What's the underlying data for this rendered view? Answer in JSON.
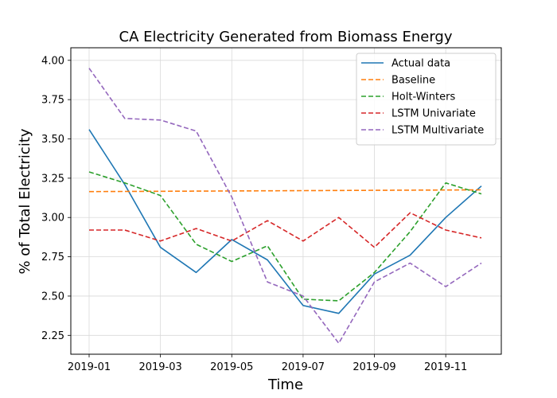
{
  "chart_data": {
    "type": "line",
    "title": "CA Electricity Generated from Biomass Energy",
    "xlabel": "Time",
    "ylabel": "% of Total Electricity",
    "x": [
      "2019-01",
      "2019-02",
      "2019-03",
      "2019-04",
      "2019-05",
      "2019-06",
      "2019-07",
      "2019-08",
      "2019-09",
      "2019-10",
      "2019-11",
      "2019-12"
    ],
    "xticks": [
      "2019-01",
      "2019-03",
      "2019-05",
      "2019-07",
      "2019-09",
      "2019-11"
    ],
    "yticks": [
      "2.25",
      "2.50",
      "2.75",
      "3.00",
      "3.25",
      "3.50",
      "3.75",
      "4.00"
    ],
    "ylim": [
      2.13,
      4.08
    ],
    "grid": true,
    "legend_position": "top-right",
    "series": [
      {
        "name": "Actual data",
        "color": "#1f77b4",
        "dashed": false,
        "values": [
          3.56,
          3.21,
          2.81,
          2.65,
          2.86,
          2.73,
          2.44,
          2.39,
          2.64,
          2.76,
          3.0,
          3.2
        ]
      },
      {
        "name": "Baseline",
        "color": "#ff7f0e",
        "dashed": true,
        "values": [
          3.165,
          3.166,
          3.167,
          3.168,
          3.169,
          3.17,
          3.171,
          3.172,
          3.173,
          3.174,
          3.175,
          3.176
        ]
      },
      {
        "name": "Holt-Winters",
        "color": "#2ca02c",
        "dashed": true,
        "values": [
          3.29,
          3.22,
          3.14,
          2.83,
          2.72,
          2.82,
          2.48,
          2.47,
          2.65,
          2.91,
          3.22,
          3.15
        ]
      },
      {
        "name": "LSTM Univariate",
        "color": "#d62728",
        "dashed": true,
        "values": [
          2.92,
          2.92,
          2.85,
          2.93,
          2.85,
          2.98,
          2.85,
          3.0,
          2.81,
          3.03,
          2.92,
          2.87
        ]
      },
      {
        "name": "LSTM Multivariate",
        "color": "#9467bd",
        "dashed": true,
        "values": [
          3.95,
          3.63,
          3.62,
          3.55,
          3.13,
          2.59,
          2.5,
          2.2,
          2.59,
          2.71,
          2.56,
          2.71
        ]
      }
    ]
  }
}
